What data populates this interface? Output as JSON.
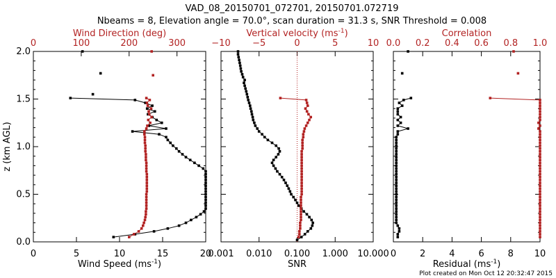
{
  "title_line1": "VAD_08_20150701_072701, 20150701.072719",
  "title_line2": "Nbeams = 8, Elevation angle = 70.0°, scan duration = 31.3 s, SNR Threshold = 0.008",
  "footer": "Plot created on Mon Oct 12 20:32:47 2015",
  "colors": {
    "black": "#000000",
    "red": "#b22222"
  },
  "chart_data": [
    {
      "type": "scatter",
      "panel": "wind",
      "ylabel": "z (km AGL)",
      "ylim": [
        0,
        2
      ],
      "yticks": [
        "0.0",
        "0.5",
        "1.0",
        "1.5",
        "2.0"
      ],
      "bottom_axis": {
        "label": "Wind Speed (ms",
        "unit_sup": "-1",
        "label_tail": ")",
        "lim": [
          0,
          20
        ],
        "ticks": [
          "0",
          "5",
          "10",
          "15",
          "20"
        ]
      },
      "top_axis": {
        "label": "Wind Direction (deg)",
        "lim": [
          0,
          360
        ],
        "ticks": [
          "0",
          "100",
          "200",
          "300"
        ]
      },
      "series": [
        {
          "axis": "bottom",
          "color": "#000000",
          "connected": true,
          "y": [
            0.05,
            0.08,
            0.11,
            0.14,
            0.17,
            0.2,
            0.23,
            0.26,
            0.29,
            0.32,
            0.35,
            0.38,
            0.41,
            0.44,
            0.47,
            0.5,
            0.53,
            0.56,
            0.59,
            0.62,
            0.65,
            0.68,
            0.71,
            0.74,
            0.77,
            0.8,
            0.83,
            0.86,
            0.89,
            0.92,
            0.95,
            0.98,
            1.01,
            1.04,
            1.07,
            1.1,
            1.13,
            1.16,
            1.19,
            1.22,
            1.25,
            1.28,
            1.31,
            1.34,
            1.37,
            1.4,
            1.43,
            1.46,
            1.49,
            1.51
          ],
          "x": [
            9.3,
            11.8,
            14.0,
            15.6,
            16.9,
            17.7,
            18.3,
            18.9,
            19.4,
            19.8,
            20.0,
            20.0,
            20.0,
            20.0,
            20.0,
            20.0,
            20.0,
            20.0,
            20.0,
            20.0,
            20.0,
            20.0,
            20.0,
            20.0,
            19.7,
            19.2,
            18.7,
            18.2,
            17.7,
            17.3,
            16.9,
            16.6,
            16.2,
            15.9,
            15.6,
            15.4,
            14.6,
            11.5,
            15.4,
            13.4,
            14.9,
            14.3,
            13.8,
            13.3,
            14.1,
            13.2,
            13.8,
            13.0,
            11.8,
            4.3
          ]
        },
        {
          "axis": "bottom",
          "color": "#000000",
          "connected": false,
          "y": [
            1.55,
            1.77,
            2.0
          ],
          "x": [
            6.9,
            7.8,
            5.7
          ]
        },
        {
          "axis": "top",
          "color": "#b22222",
          "connected": true,
          "y": [
            0.05,
            0.08,
            0.11,
            0.14,
            0.17,
            0.2,
            0.23,
            0.26,
            0.29,
            0.32,
            0.35,
            0.38,
            0.41,
            0.44,
            0.47,
            0.5,
            0.53,
            0.56,
            0.59,
            0.62,
            0.65,
            0.68,
            0.71,
            0.74,
            0.77,
            0.8,
            0.83,
            0.86,
            0.89,
            0.92,
            0.95,
            0.98,
            1.01,
            1.04,
            1.07,
            1.1,
            1.13,
            1.16,
            1.19,
            1.22,
            1.25,
            1.28,
            1.31,
            1.34,
            1.37,
            1.4,
            1.43,
            1.46,
            1.49,
            1.51
          ],
          "x": [
            200,
            210,
            220,
            226,
            229,
            231,
            233,
            234,
            235,
            235,
            236,
            236,
            236,
            236,
            236,
            236,
            237,
            237,
            237,
            237,
            237,
            237,
            237,
            236,
            236,
            236,
            236,
            235,
            235,
            235,
            234,
            234,
            234,
            233,
            233,
            233,
            232,
            232,
            236,
            238,
            244,
            240,
            247,
            242,
            241,
            246,
            239,
            237,
            243,
            236
          ]
        },
        {
          "axis": "top",
          "color": "#b22222",
          "connected": false,
          "y": [
            1.75,
            2.0
          ],
          "x": [
            250,
            247
          ]
        }
      ]
    },
    {
      "type": "scatter",
      "panel": "snr",
      "ylim": [
        0,
        2
      ],
      "bottom_axis": {
        "label": "SNR",
        "scale": "log",
        "lim": [
          0.001,
          10
        ],
        "ticks": [
          "0.001",
          "0.010",
          "0.100",
          "1.000",
          "10.000"
        ]
      },
      "top_axis": {
        "label": "Vertical velocity (ms",
        "unit_sup": "-1",
        "label_tail": ")",
        "lim": [
          -10,
          10
        ],
        "ticks": [
          "−10",
          "−5",
          "0",
          "5",
          "10"
        ]
      },
      "series": [
        {
          "axis": "bottom",
          "color": "#000000",
          "connected": true,
          "y": [
            0.02,
            0.05,
            0.08,
            0.11,
            0.14,
            0.17,
            0.2,
            0.23,
            0.26,
            0.29,
            0.32,
            0.35,
            0.38,
            0.41,
            0.44,
            0.47,
            0.5,
            0.53,
            0.56,
            0.59,
            0.62,
            0.65,
            0.68,
            0.71,
            0.74,
            0.77,
            0.8,
            0.83,
            0.86,
            0.89,
            0.92,
            0.95,
            0.98,
            1.01,
            1.04,
            1.07,
            1.1,
            1.13,
            1.16,
            1.19,
            1.22,
            1.25,
            1.28,
            1.31,
            1.34,
            1.37,
            1.4,
            1.43,
            1.46,
            1.49,
            1.52,
            1.55,
            1.58,
            1.61,
            1.64,
            1.67,
            1.7,
            1.73,
            1.76,
            1.79,
            1.82,
            1.85,
            1.88,
            1.91,
            1.94,
            1.97,
            2.0
          ],
          "x": [
            0.1,
            0.13,
            0.16,
            0.19,
            0.23,
            0.25,
            0.26,
            0.24,
            0.21,
            0.18,
            0.15,
            0.13,
            0.11,
            0.1,
            0.09,
            0.08,
            0.07,
            0.065,
            0.06,
            0.055,
            0.05,
            0.045,
            0.04,
            0.035,
            0.03,
            0.027,
            0.024,
            0.022,
            0.024,
            0.028,
            0.032,
            0.035,
            0.033,
            0.028,
            0.022,
            0.017,
            0.014,
            0.012,
            0.01,
            0.009,
            0.008,
            0.0075,
            0.007,
            0.0068,
            0.0065,
            0.0063,
            0.006,
            0.0058,
            0.0055,
            0.0052,
            0.005,
            0.0048,
            0.0046,
            0.0044,
            0.0042,
            0.004,
            0.0042,
            0.0038,
            0.0036,
            0.0034,
            0.0033,
            0.0032,
            0.0031,
            0.003,
            0.0029,
            0.0028,
            0.0028
          ]
        },
        {
          "axis": "top",
          "color": "#b22222",
          "connected": true,
          "y": [
            0.05,
            0.08,
            0.11,
            0.14,
            0.17,
            0.2,
            0.23,
            0.26,
            0.29,
            0.32,
            0.35,
            0.38,
            0.41,
            0.44,
            0.47,
            0.5,
            0.53,
            0.56,
            0.59,
            0.62,
            0.65,
            0.68,
            0.71,
            0.74,
            0.77,
            0.8,
            0.83,
            0.86,
            0.89,
            0.92,
            0.95,
            0.98,
            1.01,
            1.04,
            1.07,
            1.1,
            1.13,
            1.16,
            1.19,
            1.22,
            1.25,
            1.28,
            1.31,
            1.34,
            1.37,
            1.4,
            1.43,
            1.46,
            1.49,
            1.51
          ],
          "x": [
            0.2,
            0.3,
            0.3,
            0.4,
            0.4,
            0.4,
            0.5,
            0.5,
            0.5,
            0.5,
            0.5,
            0.5,
            0.5,
            0.5,
            0.5,
            0.6,
            0.6,
            0.6,
            0.6,
            0.6,
            0.6,
            0.6,
            0.6,
            0.6,
            0.6,
            0.6,
            0.6,
            0.6,
            0.6,
            0.6,
            0.6,
            0.7,
            0.7,
            0.7,
            0.7,
            0.8,
            0.8,
            0.9,
            1.0,
            1.2,
            1.4,
            1.6,
            1.8,
            1.5,
            1.3,
            1.1,
            1.4,
            1.3,
            1.2,
            -2.2
          ]
        }
      ]
    },
    {
      "type": "scatter",
      "panel": "residual",
      "ylim": [
        0,
        2
      ],
      "bottom_axis": {
        "label": "Residual (ms",
        "unit_sup": "-1",
        "label_tail": ")",
        "lim": [
          0,
          10
        ],
        "ticks": [
          "0",
          "2",
          "4",
          "6",
          "8",
          "10"
        ]
      },
      "top_axis": {
        "label": "Correlation",
        "lim": [
          0,
          1
        ],
        "ticks": [
          "0.0",
          "0.2",
          "0.4",
          "0.6",
          "0.8",
          "1.0"
        ]
      },
      "series": [
        {
          "axis": "bottom",
          "color": "#000000",
          "connected": true,
          "y": [
            0.05,
            0.08,
            0.11,
            0.14,
            0.17,
            0.2,
            0.23,
            0.26,
            0.29,
            0.32,
            0.35,
            0.38,
            0.41,
            0.44,
            0.47,
            0.5,
            0.53,
            0.56,
            0.59,
            0.62,
            0.65,
            0.68,
            0.71,
            0.74,
            0.77,
            0.8,
            0.83,
            0.86,
            0.89,
            0.92,
            0.95,
            0.98,
            1.01,
            1.04,
            1.07,
            1.1,
            1.13,
            1.16,
            1.19,
            1.22,
            1.25,
            1.28,
            1.31,
            1.34,
            1.37,
            1.4,
            1.43,
            1.46,
            1.49,
            1.51
          ],
          "x": [
            0.3,
            0.3,
            0.4,
            0.4,
            0.3,
            0.2,
            0.2,
            0.2,
            0.2,
            0.2,
            0.2,
            0.2,
            0.2,
            0.2,
            0.2,
            0.2,
            0.2,
            0.2,
            0.2,
            0.2,
            0.2,
            0.2,
            0.2,
            0.2,
            0.2,
            0.2,
            0.2,
            0.2,
            0.2,
            0.2,
            0.2,
            0.2,
            0.2,
            0.2,
            0.2,
            0.2,
            0.3,
            0.3,
            1.0,
            0.3,
            0.5,
            0.3,
            0.5,
            0.3,
            0.3,
            0.3,
            0.6,
            0.4,
            0.7,
            1.2
          ]
        },
        {
          "axis": "bottom",
          "color": "#000000",
          "connected": false,
          "y": [
            1.77,
            2.0
          ],
          "x": [
            0.6,
            1.0
          ]
        },
        {
          "axis": "top",
          "color": "#b22222",
          "connected": true,
          "y": [
            0.05,
            0.08,
            0.11,
            0.14,
            0.17,
            0.2,
            0.23,
            0.26,
            0.29,
            0.32,
            0.35,
            0.38,
            0.41,
            0.44,
            0.47,
            0.5,
            0.53,
            0.56,
            0.59,
            0.62,
            0.65,
            0.68,
            0.71,
            0.74,
            0.77,
            0.8,
            0.83,
            0.86,
            0.89,
            0.92,
            0.95,
            0.98,
            1.01,
            1.04,
            1.07,
            1.1,
            1.13,
            1.16,
            1.19,
            1.22,
            1.25,
            1.28,
            1.31,
            1.34,
            1.37,
            1.4,
            1.43,
            1.46,
            1.49,
            1.51
          ],
          "x": [
            1.0,
            1.0,
            1.0,
            1.0,
            1.0,
            1.0,
            1.0,
            1.0,
            1.0,
            1.0,
            1.0,
            1.0,
            1.0,
            1.0,
            1.0,
            1.0,
            1.0,
            1.0,
            1.0,
            1.0,
            1.0,
            1.0,
            1.0,
            1.0,
            1.0,
            1.0,
            1.0,
            1.0,
            1.0,
            1.0,
            1.0,
            1.0,
            1.0,
            1.0,
            1.0,
            1.0,
            1.0,
            1.0,
            0.99,
            1.0,
            0.99,
            1.0,
            1.0,
            1.0,
            1.0,
            1.0,
            1.0,
            1.0,
            1.0,
            0.66
          ]
        },
        {
          "axis": "top",
          "color": "#b22222",
          "connected": false,
          "y": [
            1.77,
            2.0
          ],
          "x": [
            0.85,
            0.82
          ]
        }
      ]
    }
  ]
}
